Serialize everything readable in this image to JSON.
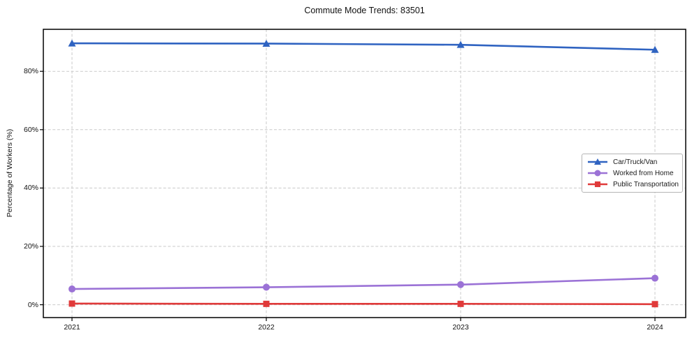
{
  "title": "Commute Mode Trends: 83501",
  "colors": {
    "car": "#2f63c1",
    "home": "#9b72d6",
    "transit": "#e03a3a",
    "grid": "#c9c9c9",
    "frame": "#000000",
    "text": "#111111",
    "legend_border": "#b5b5b5"
  },
  "chart_data": {
    "type": "line",
    "title": "Commute Mode Trends: 83501",
    "xlabel": "",
    "ylabel": "Percentage of Workers (%)",
    "x": [
      2021,
      2022,
      2023,
      2024
    ],
    "x_tick_labels": [
      "2021",
      "2022",
      "2023",
      "2024"
    ],
    "y_ticks": [
      0,
      20,
      40,
      60,
      80
    ],
    "y_tick_labels": [
      "0%",
      "20%",
      "40%",
      "60%",
      "80%"
    ],
    "ylim": [
      -4.4,
      94.4
    ],
    "grid": true,
    "grid_style": "dashed",
    "legend_position": "center right",
    "series": [
      {
        "name": "Car/Truck/Van",
        "color": "#2f63c1",
        "marker": "triangle",
        "values": [
          89.6,
          89.5,
          89.1,
          87.4
        ]
      },
      {
        "name": "Worked from Home",
        "color": "#9b72d6",
        "marker": "circle",
        "values": [
          5.4,
          6.0,
          6.9,
          9.1
        ]
      },
      {
        "name": "Public Transportation",
        "color": "#e03a3a",
        "marker": "square",
        "values": [
          0.4,
          0.3,
          0.3,
          0.2
        ]
      }
    ]
  }
}
